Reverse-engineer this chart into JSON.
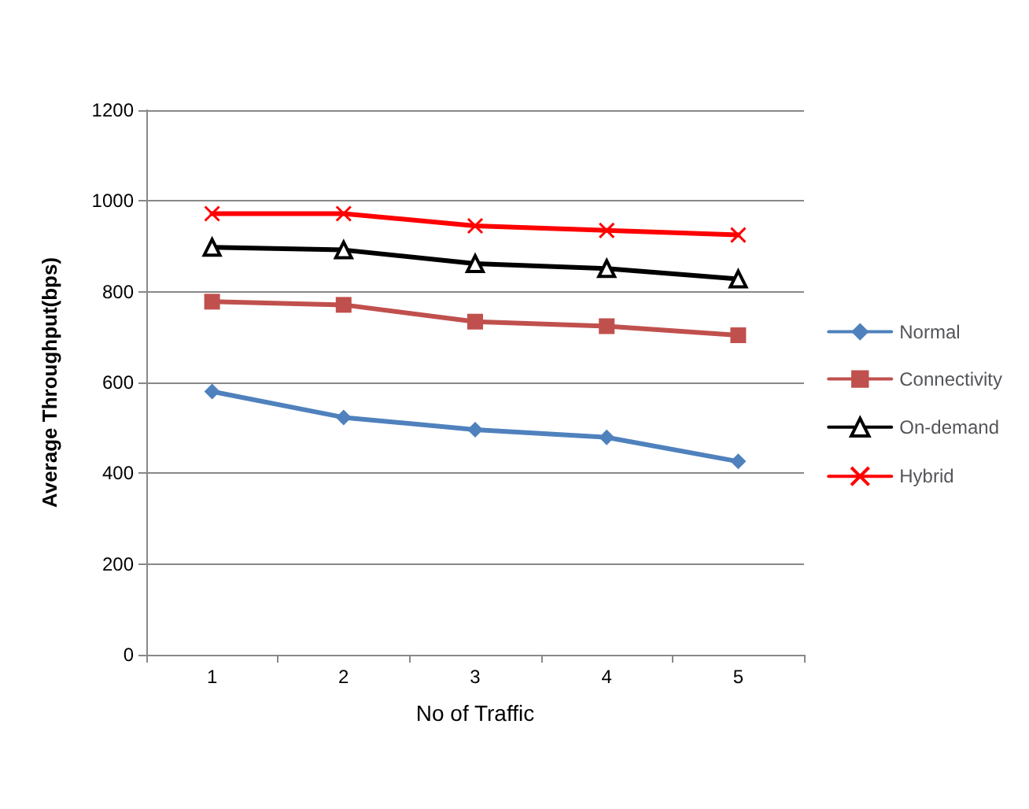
{
  "chart_data": {
    "type": "line",
    "xlabel": "No of Traffic",
    "ylabel": "Average Throughput(bps)",
    "categories": [
      "1",
      "2",
      "3",
      "4",
      "5"
    ],
    "series": [
      {
        "name": "Normal",
        "color": "#4f81bd",
        "marker": "diamond",
        "values": [
          580,
          523,
          496,
          479,
          426
        ]
      },
      {
        "name": "Connectivity",
        "color": "#c0504d",
        "marker": "square",
        "values": [
          778,
          771,
          734,
          724,
          704
        ]
      },
      {
        "name": "On-demand",
        "color": "#000000",
        "marker": "triangle",
        "values": [
          898,
          892,
          862,
          851,
          828
        ]
      },
      {
        "name": "Hybrid",
        "color": "#ff0000",
        "marker": "cross",
        "values": [
          972,
          972,
          945,
          935,
          925
        ]
      }
    ],
    "ylim": [
      0,
      1200
    ],
    "yticks": [
      0,
      200,
      400,
      600,
      800,
      1000,
      1200
    ],
    "grid": "y",
    "legend": "right",
    "line_style": "solid"
  }
}
